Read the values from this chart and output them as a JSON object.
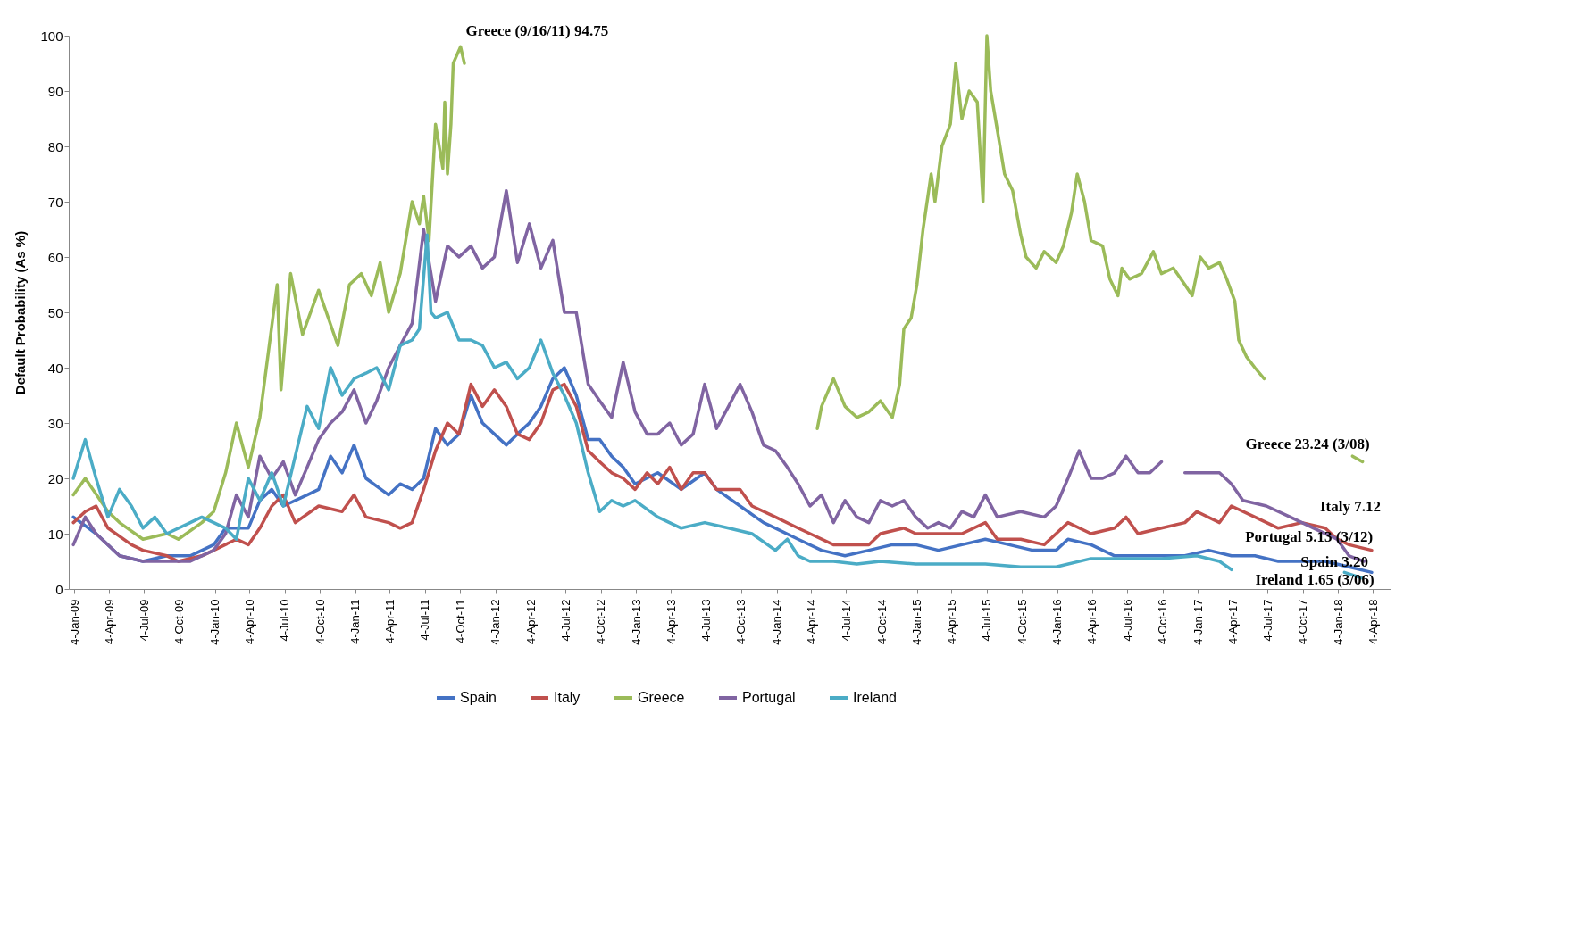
{
  "chart_data": {
    "type": "line",
    "ylabel": "Default Probability (As %)",
    "ylim": [
      0,
      100
    ],
    "yticks": [
      0,
      10,
      20,
      30,
      40,
      50,
      60,
      70,
      80,
      90,
      100
    ],
    "xlim": [
      "2008-12-20",
      "2018-05-20"
    ],
    "xticks": [
      {
        "value": "2009-01-04",
        "label": "4-Jan-09"
      },
      {
        "value": "2009-04-04",
        "label": "4-Apr-09"
      },
      {
        "value": "2009-07-04",
        "label": "4-Jul-09"
      },
      {
        "value": "2009-10-04",
        "label": "4-Oct-09"
      },
      {
        "value": "2010-01-04",
        "label": "4-Jan-10"
      },
      {
        "value": "2010-04-04",
        "label": "4-Apr-10"
      },
      {
        "value": "2010-07-04",
        "label": "4-Jul-10"
      },
      {
        "value": "2010-10-04",
        "label": "4-Oct-10"
      },
      {
        "value": "2011-01-04",
        "label": "4-Jan-11"
      },
      {
        "value": "2011-04-04",
        "label": "4-Apr-11"
      },
      {
        "value": "2011-07-04",
        "label": "4-Jul-11"
      },
      {
        "value": "2011-10-04",
        "label": "4-Oct-11"
      },
      {
        "value": "2012-01-04",
        "label": "4-Jan-12"
      },
      {
        "value": "2012-04-04",
        "label": "4-Apr-12"
      },
      {
        "value": "2012-07-04",
        "label": "4-Jul-12"
      },
      {
        "value": "2012-10-04",
        "label": "4-Oct-12"
      },
      {
        "value": "2013-01-04",
        "label": "4-Jan-13"
      },
      {
        "value": "2013-04-04",
        "label": "4-Apr-13"
      },
      {
        "value": "2013-07-04",
        "label": "4-Jul-13"
      },
      {
        "value": "2013-10-04",
        "label": "4-Oct-13"
      },
      {
        "value": "2014-01-04",
        "label": "4-Jan-14"
      },
      {
        "value": "2014-04-04",
        "label": "4-Apr-14"
      },
      {
        "value": "2014-07-04",
        "label": "4-Jul-14"
      },
      {
        "value": "2014-10-04",
        "label": "4-Oct-14"
      },
      {
        "value": "2015-01-04",
        "label": "4-Jan-15"
      },
      {
        "value": "2015-04-04",
        "label": "4-Apr-15"
      },
      {
        "value": "2015-07-04",
        "label": "4-Jul-15"
      },
      {
        "value": "2015-10-04",
        "label": "4-Oct-15"
      },
      {
        "value": "2016-01-04",
        "label": "4-Jan-16"
      },
      {
        "value": "2016-04-04",
        "label": "4-Apr-16"
      },
      {
        "value": "2016-07-04",
        "label": "4-Jul-16"
      },
      {
        "value": "2016-10-04",
        "label": "4-Oct-16"
      },
      {
        "value": "2017-01-04",
        "label": "4-Jan-17"
      },
      {
        "value": "2017-04-04",
        "label": "4-Apr-17"
      },
      {
        "value": "2017-07-04",
        "label": "4-Jul-17"
      },
      {
        "value": "2017-10-04",
        "label": "4-Oct-17"
      },
      {
        "value": "2018-01-04",
        "label": "4-Jan-18"
      },
      {
        "value": "2018-04-04",
        "label": "4-Apr-18"
      }
    ],
    "grid": false,
    "legend": "bottom",
    "line_style": "solid",
    "series": [
      {
        "name": "Spain",
        "color": "#4472c4",
        "x": [
          "2009-01",
          "2009-03",
          "2009-05",
          "2009-07",
          "2009-09",
          "2009-11",
          "2010-01",
          "2010-02",
          "2010-04",
          "2010-05",
          "2010-06",
          "2010-07",
          "2010-09",
          "2010-10",
          "2010-11",
          "2010-12",
          "2011-01",
          "2011-02",
          "2011-04",
          "2011-05",
          "2011-06",
          "2011-07",
          "2011-08",
          "2011-09",
          "2011-10",
          "2011-11",
          "2011-12",
          "2012-01",
          "2012-02",
          "2012-03",
          "2012-04",
          "2012-05",
          "2012-06",
          "2012-07",
          "2012-08",
          "2012-09",
          "2012-10",
          "2012-11",
          "2012-12",
          "2013-01",
          "2013-03",
          "2013-05",
          "2013-07",
          "2013-08",
          "2013-10",
          "2013-12",
          "2014-01",
          "2014-03",
          "2014-05",
          "2014-07",
          "2014-09",
          "2014-11",
          "2015-01",
          "2015-03",
          "2015-05",
          "2015-07",
          "2015-09",
          "2015-11",
          "2016-01",
          "2016-02",
          "2016-04",
          "2016-06",
          "2016-08",
          "2016-10",
          "2016-12",
          "2017-02",
          "2017-04",
          "2017-06",
          "2017-08",
          "2017-10",
          "2017-12",
          "2018-02",
          "2018-04-01"
        ],
        "values": [
          13,
          10,
          6,
          5,
          6,
          6,
          8,
          11,
          11,
          16,
          18,
          15,
          17,
          18,
          24,
          21,
          26,
          20,
          17,
          19,
          18,
          20,
          29,
          26,
          28,
          35,
          30,
          28,
          26,
          28,
          30,
          33,
          38,
          40,
          35,
          27,
          27,
          24,
          22,
          19,
          21,
          18,
          21,
          18,
          15,
          12,
          11,
          9,
          7,
          6,
          7,
          8,
          8,
          7,
          8,
          9,
          8,
          7,
          7,
          9,
          8,
          6,
          6,
          6,
          6,
          7,
          6,
          6,
          5,
          5,
          5,
          4,
          3
        ]
      },
      {
        "name": "Italy",
        "color": "#c0504d",
        "x": [
          "2009-01",
          "2009-02",
          "2009-03",
          "2009-04",
          "2009-06",
          "2009-07",
          "2009-09",
          "2009-10",
          "2009-12",
          "2010-01",
          "2010-03",
          "2010-04",
          "2010-05",
          "2010-06",
          "2010-07",
          "2010-08",
          "2010-10",
          "2010-12",
          "2011-01",
          "2011-02",
          "2011-04",
          "2011-05",
          "2011-06",
          "2011-07",
          "2011-08",
          "2011-09",
          "2011-10",
          "2011-11",
          "2011-12",
          "2012-01",
          "2012-02",
          "2012-03",
          "2012-04",
          "2012-05",
          "2012-06",
          "2012-07",
          "2012-08",
          "2012-09",
          "2012-10",
          "2012-11",
          "2012-12",
          "2013-01",
          "2013-02",
          "2013-03",
          "2013-04",
          "2013-05",
          "2013-06",
          "2013-07",
          "2013-08",
          "2013-10",
          "2013-11",
          "2014-01",
          "2014-03",
          "2014-04",
          "2014-06",
          "2014-07",
          "2014-09",
          "2014-10",
          "2014-12",
          "2015-01",
          "2015-03",
          "2015-05",
          "2015-07",
          "2015-08",
          "2015-10",
          "2015-12",
          "2016-01",
          "2016-02",
          "2016-04",
          "2016-06",
          "2016-07",
          "2016-08",
          "2016-10",
          "2016-12",
          "2017-01",
          "2017-03",
          "2017-04",
          "2017-06",
          "2017-08",
          "2017-10",
          "2017-12",
          "2018-01",
          "2018-02",
          "2018-04-01"
        ],
        "values": [
          12,
          14,
          15,
          11,
          8,
          7,
          6,
          5,
          6,
          7,
          9,
          8,
          11,
          15,
          17,
          12,
          15,
          14,
          17,
          13,
          12,
          11,
          12,
          18,
          25,
          30,
          28,
          37,
          33,
          36,
          33,
          28,
          27,
          30,
          36,
          37,
          33,
          25,
          23,
          21,
          20,
          18,
          21,
          19,
          22,
          18,
          21,
          21,
          18,
          18,
          15,
          13,
          11,
          10,
          8,
          8,
          8,
          10,
          11,
          10,
          10,
          10,
          12,
          9,
          9,
          8,
          10,
          12,
          10,
          11,
          13,
          10,
          11,
          12,
          14,
          12,
          15,
          13,
          11,
          12,
          11,
          9,
          8,
          7
        ]
      },
      {
        "name": "Greece",
        "color": "#9bbb59",
        "x": [
          "2009-01",
          "2009-02",
          "2009-04",
          "2009-05",
          "2009-07",
          "2009-09",
          "2009-10",
          "2009-12",
          "2010-01",
          "2010-02",
          "2010-03",
          "2010-04",
          "2010-05",
          "2010-06-15",
          "2010-06-25",
          "2010-07-20",
          "2010-08-20",
          "2010-10-01",
          "2010-11-20",
          "2010-12-20",
          "2011-01-20",
          "2011-02-15",
          "2011-03-10",
          "2011-04-01",
          "2011-05-01",
          "2011-06-01",
          "2011-06-20",
          "2011-07-01",
          "2011-07-15",
          "2011-08-01",
          "2011-08-20",
          "2011-08-25",
          "2011-09-01",
          "2011-09-10",
          "2011-09-16",
          "2011-10-05",
          "2011-10-15",
          "2014-01",
          "2014-04-20",
          "2014-05",
          "2014-06",
          "2014-07",
          "2014-08",
          "2014-09",
          "2014-10",
          "2014-11-01",
          "2014-11-20",
          "2014-12-01",
          "2014-12-20",
          "2015-01-04",
          "2015-01-20",
          "2015-02-10",
          "2015-02-20",
          "2015-03-10",
          "2015-04-01",
          "2015-04-15",
          "2015-05-01",
          "2015-05-20",
          "2015-06-10",
          "2015-06-25",
          "2015-07-05",
          "2015-07-15",
          "2015-08-01",
          "2015-08-20",
          "2015-09-10",
          "2015-10-01",
          "2015-10-15",
          "2015-11-10",
          "2015-12-01",
          "2016-01-01",
          "2016-01-20",
          "2016-02-10",
          "2016-02-25",
          "2016-03-15",
          "2016-04-01",
          "2016-05-01",
          "2016-05-20",
          "2016-06-10",
          "2016-06-20",
          "2016-07-10",
          "2016-08-10",
          "2016-09-10",
          "2016-10-01",
          "2016-11-01",
          "2016-12-01",
          "2016-12-20",
          "2017-01-10",
          "2017-02-01",
          "2017-03-01",
          "2017-03-20",
          "2017-04-10",
          "2017-04-20",
          "2017-05-10",
          "2017-06-01",
          "2017-06-25",
          "2017-10",
          "2018-02-10",
          "2018-03-08"
        ],
        "values": [
          17,
          20,
          14,
          12,
          9,
          10,
          9,
          12,
          14,
          21,
          30,
          22,
          31,
          55,
          36,
          57,
          46,
          54,
          44,
          55,
          57,
          53,
          59,
          50,
          57,
          70,
          66,
          71,
          63,
          84,
          76,
          88,
          75,
          84,
          95,
          98,
          95,
          null,
          29,
          33,
          38,
          33,
          31,
          32,
          34,
          31,
          37,
          47,
          49,
          55,
          65,
          75,
          70,
          80,
          84,
          95,
          85,
          90,
          88,
          70,
          100,
          90,
          83,
          75,
          72,
          64,
          60,
          58,
          61,
          59,
          62,
          68,
          75,
          70,
          63,
          62,
          56,
          53,
          58,
          56,
          57,
          61,
          57,
          58,
          55,
          53,
          60,
          58,
          59,
          56,
          52,
          45,
          42,
          40,
          38,
          null,
          24,
          23
        ]
      },
      {
        "name": "Portugal",
        "color": "#8064a2",
        "x": [
          "2009-01",
          "2009-02",
          "2009-03",
          "2009-05",
          "2009-07",
          "2009-09",
          "2009-11",
          "2010-01",
          "2010-02",
          "2010-03",
          "2010-04",
          "2010-05",
          "2010-06",
          "2010-07",
          "2010-08",
          "2010-09",
          "2010-10",
          "2010-11",
          "2010-12",
          "2011-01",
          "2011-02",
          "2011-03",
          "2011-04",
          "2011-05",
          "2011-06",
          "2011-07",
          "2011-08",
          "2011-09",
          "2011-10",
          "2011-11",
          "2011-12",
          "2012-01",
          "2012-02",
          "2012-03",
          "2012-04",
          "2012-05",
          "2012-06",
          "2012-07",
          "2012-08",
          "2012-09",
          "2012-10",
          "2012-11",
          "2012-12",
          "2013-01",
          "2013-02",
          "2013-03",
          "2013-04",
          "2013-05",
          "2013-06",
          "2013-07",
          "2013-08",
          "2013-09",
          "2013-10",
          "2013-11",
          "2013-12",
          "2014-01",
          "2014-02",
          "2014-03",
          "2014-04",
          "2014-05",
          "2014-06",
          "2014-07",
          "2014-08",
          "2014-09",
          "2014-10",
          "2014-11",
          "2014-12",
          "2015-01",
          "2015-02",
          "2015-03",
          "2015-04",
          "2015-05",
          "2015-06",
          "2015-07",
          "2015-08",
          "2015-10",
          "2015-12",
          "2016-01",
          "2016-02",
          "2016-03",
          "2016-04",
          "2016-05",
          "2016-06",
          "2016-07",
          "2016-08",
          "2016-09",
          "2016-10",
          "2016-11",
          "2016-12",
          "2017-01",
          "2017-02",
          "2017-03",
          "2017-04",
          "2017-05",
          "2017-07",
          "2017-09",
          "2017-11",
          "2018-01",
          "2018-02",
          "2018-03-12"
        ],
        "values": [
          8,
          13,
          10,
          6,
          5,
          5,
          5,
          7,
          10,
          17,
          13,
          24,
          20,
          23,
          17,
          22,
          27,
          30,
          32,
          36,
          30,
          34,
          40,
          44,
          48,
          65,
          52,
          62,
          60,
          62,
          58,
          60,
          72,
          59,
          66,
          58,
          63,
          50,
          50,
          37,
          34,
          31,
          41,
          32,
          28,
          28,
          30,
          26,
          28,
          37,
          29,
          33,
          37,
          32,
          26,
          25,
          22,
          19,
          15,
          17,
          12,
          16,
          13,
          12,
          16,
          15,
          16,
          13,
          11,
          12,
          11,
          14,
          13,
          17,
          13,
          14,
          13,
          15,
          20,
          25,
          20,
          20,
          21,
          24,
          21,
          21,
          23,
          null,
          21,
          21,
          21,
          21,
          19,
          16,
          15,
          13,
          11,
          9,
          6,
          5
        ]
      },
      {
        "name": "Ireland",
        "color": "#4bacc6",
        "x": [
          "2009-01",
          "2009-02",
          "2009-03",
          "2009-04",
          "2009-05",
          "2009-06",
          "2009-07",
          "2009-08",
          "2009-09",
          "2009-11",
          "2009-12",
          "2010-01",
          "2010-02",
          "2010-03",
          "2010-04",
          "2010-05",
          "2010-06",
          "2010-07",
          "2010-08",
          "2010-09",
          "2010-10",
          "2010-11",
          "2010-12",
          "2011-01",
          "2011-02",
          "2011-03",
          "2011-04",
          "2011-05",
          "2011-06",
          "2011-06-20",
          "2011-07-10",
          "2011-07-20",
          "2011-08",
          "2011-09",
          "2011-10",
          "2011-11",
          "2011-12",
          "2012-01",
          "2012-02",
          "2012-03",
          "2012-04",
          "2012-05",
          "2012-06",
          "2012-07",
          "2012-08",
          "2012-09",
          "2012-10",
          "2012-11",
          "2012-12",
          "2013-01",
          "2013-03",
          "2013-05",
          "2013-07",
          "2013-09",
          "2013-11",
          "2014-01",
          "2014-02",
          "2014-03",
          "2014-04",
          "2014-06",
          "2014-08",
          "2014-10",
          "2015-01",
          "2015-04",
          "2015-07",
          "2015-10",
          "2016-01",
          "2016-04",
          "2016-07",
          "2016-10",
          "2017-01",
          "2017-03",
          "2017-04",
          "2017-10",
          "2018-01-20",
          "2018-03-06"
        ],
        "values": [
          20,
          27,
          20,
          13,
          18,
          15,
          11,
          13,
          10,
          12,
          13,
          12,
          11,
          9,
          20,
          16,
          21,
          15,
          24,
          33,
          29,
          40,
          35,
          38,
          39,
          40,
          36,
          44,
          45,
          47,
          64,
          50,
          49,
          50,
          45,
          45,
          44,
          40,
          41,
          38,
          40,
          45,
          39,
          35,
          30,
          21,
          14,
          16,
          15,
          16,
          13,
          11,
          12,
          11,
          10,
          7,
          9,
          6,
          5,
          5,
          4.5,
          5,
          4.5,
          4.5,
          4.5,
          4,
          4,
          5.5,
          5.5,
          5.5,
          6,
          5,
          3.5,
          null,
          3,
          2
        ]
      }
    ],
    "annotations": [
      {
        "text": "Greece (9/16/11) 94.75",
        "x": "2011-09-16",
        "y": 94.75
      },
      {
        "text": "Greece 23.24 (3/08)",
        "x": "2018-03-08",
        "y": 23.24
      },
      {
        "text": "Italy 7.12",
        "x": "2018-04-01",
        "y": 7.12
      },
      {
        "text": "Portugal 5.13 (3/12)",
        "x": "2018-03-12",
        "y": 5.13
      },
      {
        "text": "Spain 3.20",
        "x": "2018-04-01",
        "y": 3.2
      },
      {
        "text": "Ireland 1.65 (3/06)",
        "x": "2018-03-06",
        "y": 1.65
      }
    ]
  }
}
